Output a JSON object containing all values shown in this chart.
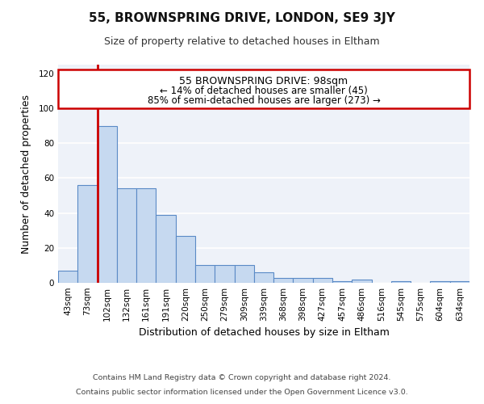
{
  "title1": "55, BROWNSPRING DRIVE, LONDON, SE9 3JY",
  "title2": "Size of property relative to detached houses in Eltham",
  "xlabel": "Distribution of detached houses by size in Eltham",
  "ylabel": "Number of detached properties",
  "footer1": "Contains HM Land Registry data © Crown copyright and database right 2024.",
  "footer2": "Contains public sector information licensed under the Open Government Licence v3.0.",
  "annotation_line1": "55 BROWNSPRING DRIVE: 98sqm",
  "annotation_line2": "← 14% of detached houses are smaller (45)",
  "annotation_line3": "85% of semi-detached houses are larger (273) →",
  "bar_labels": [
    "43sqm",
    "73sqm",
    "102sqm",
    "132sqm",
    "161sqm",
    "191sqm",
    "220sqm",
    "250sqm",
    "279sqm",
    "309sqm",
    "339sqm",
    "368sqm",
    "398sqm",
    "427sqm",
    "457sqm",
    "486sqm",
    "516sqm",
    "545sqm",
    "575sqm",
    "604sqm",
    "634sqm"
  ],
  "bar_heights": [
    7,
    56,
    90,
    54,
    54,
    39,
    27,
    10,
    10,
    10,
    6,
    3,
    3,
    3,
    1,
    2,
    0,
    1,
    0,
    1,
    1
  ],
  "bar_color": "#c6d9f0",
  "bar_edge_color": "#5a8ac6",
  "red_line_index": 2,
  "red_line_color": "#cc0000",
  "annotation_box_color": "#cc0000",
  "plot_bg_color": "#eef2f9",
  "fig_bg_color": "#ffffff",
  "ylim": [
    0,
    125
  ],
  "yticks": [
    0,
    20,
    40,
    60,
    80,
    100,
    120
  ],
  "title1_fontsize": 11,
  "title2_fontsize": 9,
  "ylabel_fontsize": 9,
  "xlabel_fontsize": 9,
  "tick_fontsize": 7.5,
  "footer_fontsize": 6.8
}
